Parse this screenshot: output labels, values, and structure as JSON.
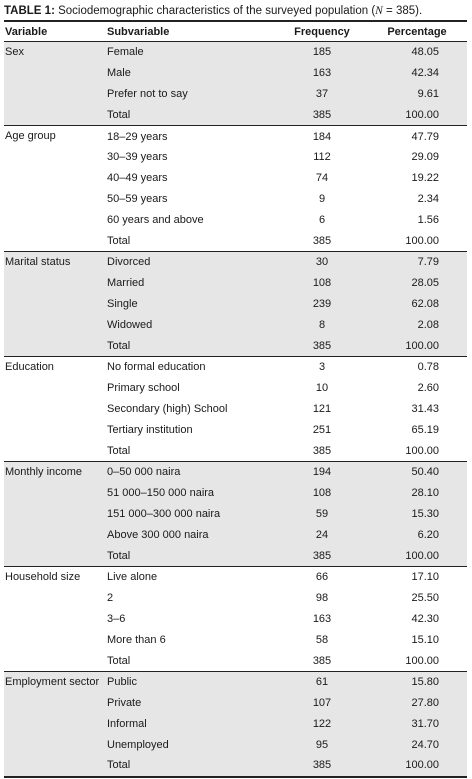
{
  "caption": {
    "label": "TABLE 1:",
    "text_before": " Sociodemographic characteristics of the surveyed population (",
    "n_symbol": "N",
    "text_after": " = 385)."
  },
  "columns": [
    "Variable",
    "Subvariable",
    "Frequency",
    "Percentage"
  ],
  "groups": [
    {
      "variable": "Sex",
      "rows": [
        {
          "sub": "Female",
          "freq": "185",
          "pct": "48.05"
        },
        {
          "sub": "Male",
          "freq": "163",
          "pct": "42.34"
        },
        {
          "sub": "Prefer not to say",
          "freq": "37",
          "pct": "9.61"
        },
        {
          "sub": "Total",
          "freq": "385",
          "pct": "100.00"
        }
      ]
    },
    {
      "variable": "Age group",
      "rows": [
        {
          "sub": "18–29 years",
          "freq": "184",
          "pct": "47.79"
        },
        {
          "sub": "30–39 years",
          "freq": "112",
          "pct": "29.09"
        },
        {
          "sub": "40–49 years",
          "freq": "74",
          "pct": "19.22"
        },
        {
          "sub": "50–59 years",
          "freq": "9",
          "pct": "2.34"
        },
        {
          "sub": "60 years and above",
          "freq": "6",
          "pct": "1.56"
        },
        {
          "sub": "Total",
          "freq": "385",
          "pct": "100.00"
        }
      ]
    },
    {
      "variable": "Marital status",
      "rows": [
        {
          "sub": "Divorced",
          "freq": "30",
          "pct": "7.79"
        },
        {
          "sub": "Married",
          "freq": "108",
          "pct": "28.05"
        },
        {
          "sub": "Single",
          "freq": "239",
          "pct": "62.08"
        },
        {
          "sub": "Widowed",
          "freq": "8",
          "pct": "2.08"
        },
        {
          "sub": "Total",
          "freq": "385",
          "pct": "100.00"
        }
      ]
    },
    {
      "variable": "Education",
      "rows": [
        {
          "sub": "No formal education",
          "freq": "3",
          "pct": "0.78"
        },
        {
          "sub": "Primary school",
          "freq": "10",
          "pct": "2.60"
        },
        {
          "sub": "Secondary (high) School",
          "freq": "121",
          "pct": "31.43"
        },
        {
          "sub": "Tertiary institution",
          "freq": "251",
          "pct": "65.19"
        },
        {
          "sub": "Total",
          "freq": "385",
          "pct": "100.00"
        }
      ]
    },
    {
      "variable": "Monthly income",
      "rows": [
        {
          "sub": "0–50 000 naira",
          "freq": "194",
          "pct": "50.40"
        },
        {
          "sub": "51 000–150 000 naira",
          "freq": "108",
          "pct": "28.10"
        },
        {
          "sub": "151 000–300 000 naira",
          "freq": "59",
          "pct": "15.30"
        },
        {
          "sub": "Above 300 000 naira",
          "freq": "24",
          "pct": "6.20"
        },
        {
          "sub": "Total",
          "freq": "385",
          "pct": "100.00"
        }
      ]
    },
    {
      "variable": "Household size",
      "rows": [
        {
          "sub": "Live alone",
          "freq": "66",
          "pct": "17.10"
        },
        {
          "sub": "2",
          "freq": "98",
          "pct": "25.50"
        },
        {
          "sub": "3–6",
          "freq": "163",
          "pct": "42.30"
        },
        {
          "sub": "More than 6",
          "freq": "58",
          "pct": "15.10"
        },
        {
          "sub": "Total",
          "freq": "385",
          "pct": "100.00"
        }
      ]
    },
    {
      "variable": "Employment sector",
      "rows": [
        {
          "sub": "Public",
          "freq": "61",
          "pct": "15.80"
        },
        {
          "sub": "Private",
          "freq": "107",
          "pct": "27.80"
        },
        {
          "sub": "Informal",
          "freq": "122",
          "pct": "31.70"
        },
        {
          "sub": "Unemployed",
          "freq": "95",
          "pct": "24.70"
        },
        {
          "sub": "Total",
          "freq": "385",
          "pct": "100.00"
        }
      ]
    }
  ],
  "colors": {
    "shade": "#e6e6e6",
    "rule": "#222222"
  }
}
